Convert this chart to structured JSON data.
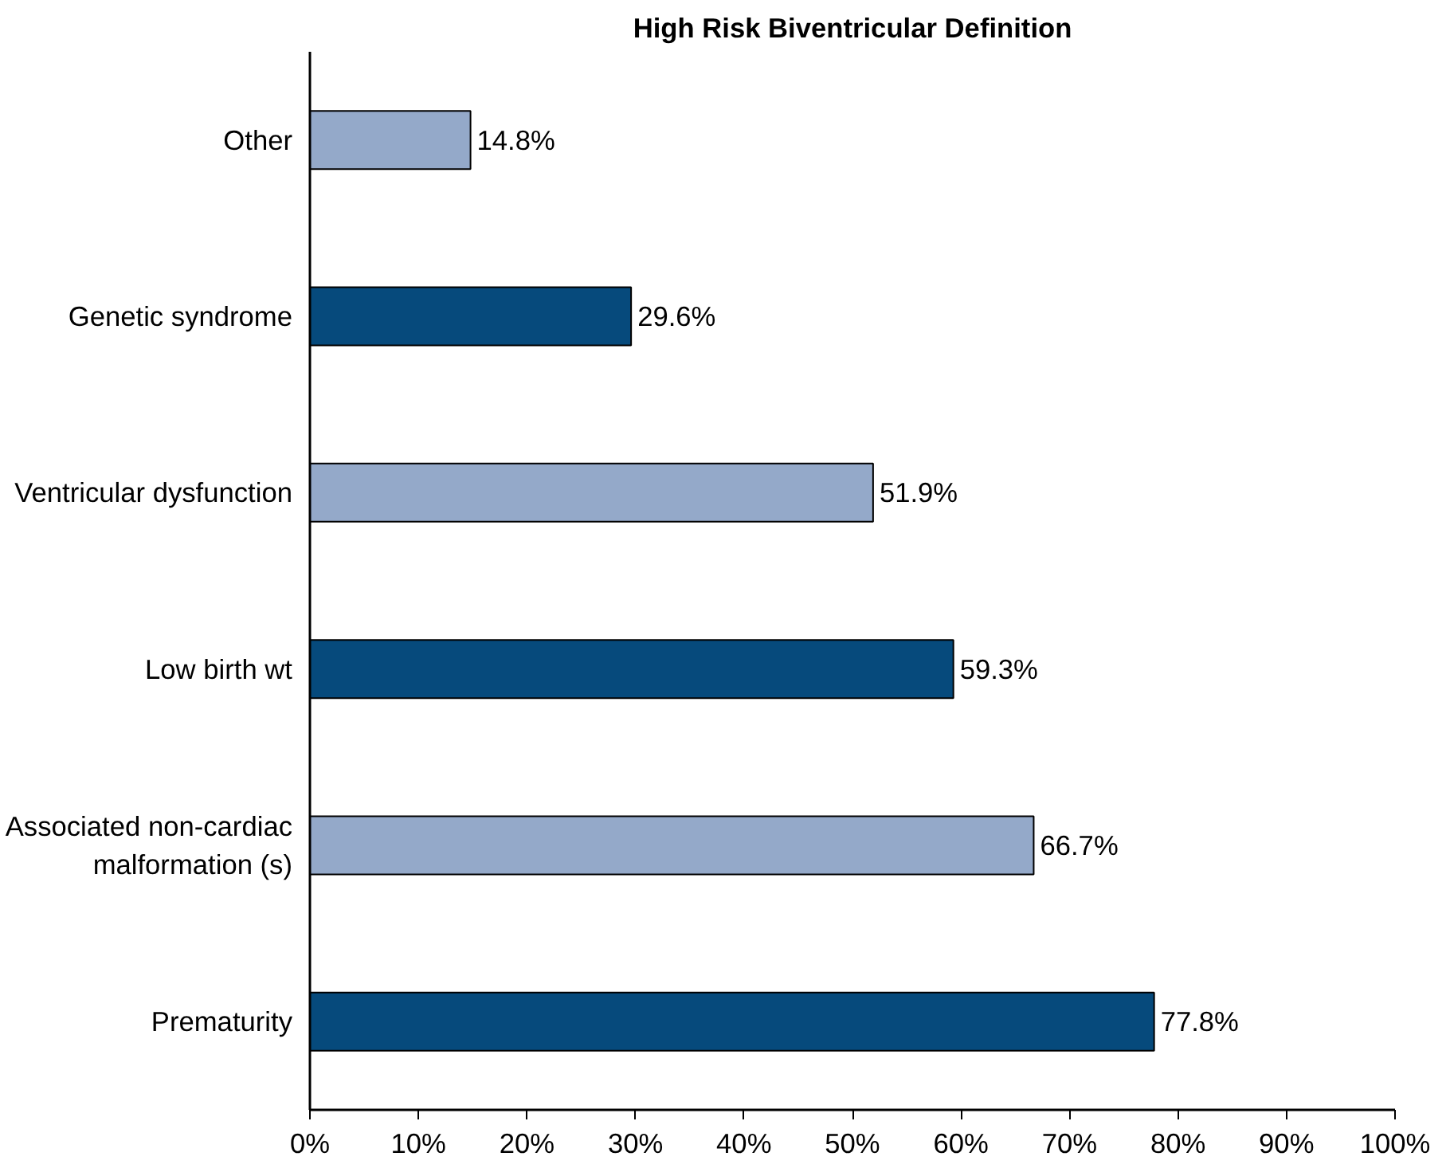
{
  "chart_data": {
    "type": "bar",
    "orientation": "horizontal",
    "title": "High Risk Biventricular Definition",
    "categories": [
      "Other",
      "Genetic syndrome",
      "Ventricular dysfunction",
      "Low birth wt",
      "Associated non-cardiac\nmalformation (s)",
      "Prematurity"
    ],
    "values": [
      14.8,
      29.6,
      51.9,
      59.3,
      66.7,
      77.8
    ],
    "colors": [
      "#94a9c9",
      "#064a7c",
      "#94a9c9",
      "#064a7c",
      "#94a9c9",
      "#064a7c"
    ],
    "value_labels": [
      "14.8%",
      "29.6%",
      "51.9%",
      "59.3%",
      "66.7%",
      "77.8%"
    ],
    "xlim": [
      0,
      100
    ],
    "xticks": [
      {
        "value": 0,
        "label": "0%"
      },
      {
        "value": 10,
        "label": "10%"
      },
      {
        "value": 20,
        "label": "20%"
      },
      {
        "value": 30,
        "label": "30%"
      },
      {
        "value": 40,
        "label": "40%"
      },
      {
        "value": 50,
        "label": "50%"
      },
      {
        "value": 60,
        "label": "60%"
      },
      {
        "value": 70,
        "label": "70%"
      },
      {
        "value": 80,
        "label": "80%"
      },
      {
        "value": 90,
        "label": "90%"
      },
      {
        "value": 100,
        "label": "100%"
      }
    ],
    "grid": false
  }
}
